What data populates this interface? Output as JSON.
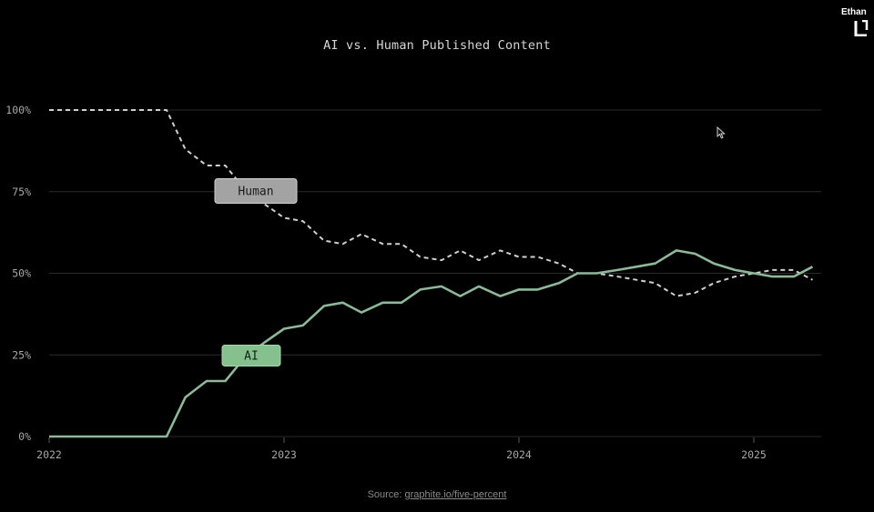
{
  "title": "AI vs. Human Published Content",
  "source": {
    "prefix": "Source: ",
    "link_text": "graphite.io/five-percent"
  },
  "watermark": {
    "name": "Ethan",
    "logo_icon": "logo-mark-icon"
  },
  "cursor_icon": "mouse-pointer-icon",
  "colors": {
    "background": "#000000",
    "human_line": "#cfcfcf",
    "ai_line": "#8fb89a",
    "human_label_bg": "#a3a3a3",
    "ai_label_bg": "#87c08f",
    "grid": "#2a2a2a",
    "tick_text": "#a8a8a8"
  },
  "chart_data": {
    "type": "line",
    "title": "AI vs. Human Published Content",
    "xlabel": "",
    "ylabel": "",
    "x_ticks": [
      "2022",
      "2023",
      "2024",
      "2025"
    ],
    "y_ticks": [
      "0%",
      "25%",
      "50%",
      "75%",
      "100%"
    ],
    "ylim": [
      0,
      100
    ],
    "xlim": [
      2022.0,
      2025.33
    ],
    "grid": "horizontal",
    "legend": "inline-labels",
    "series": [
      {
        "name": "Human",
        "style": "dashed",
        "label_position": "on-line",
        "points": [
          [
            2022.0,
            100
          ],
          [
            2022.08,
            100
          ],
          [
            2022.17,
            100
          ],
          [
            2022.25,
            100
          ],
          [
            2022.33,
            100
          ],
          [
            2022.42,
            100
          ],
          [
            2022.5,
            100
          ],
          [
            2022.58,
            88
          ],
          [
            2022.67,
            83
          ],
          [
            2022.75,
            83
          ],
          [
            2022.83,
            76
          ],
          [
            2022.92,
            71
          ],
          [
            2023.0,
            67
          ],
          [
            2023.08,
            66
          ],
          [
            2023.17,
            60
          ],
          [
            2023.25,
            59
          ],
          [
            2023.33,
            62
          ],
          [
            2023.42,
            59
          ],
          [
            2023.5,
            59
          ],
          [
            2023.58,
            55
          ],
          [
            2023.67,
            54
          ],
          [
            2023.75,
            57
          ],
          [
            2023.83,
            54
          ],
          [
            2023.92,
            57
          ],
          [
            2024.0,
            55
          ],
          [
            2024.08,
            55
          ],
          [
            2024.17,
            53
          ],
          [
            2024.25,
            50
          ],
          [
            2024.33,
            50
          ],
          [
            2024.42,
            49
          ],
          [
            2024.5,
            48
          ],
          [
            2024.58,
            47
          ],
          [
            2024.67,
            43
          ],
          [
            2024.75,
            44
          ],
          [
            2024.83,
            47
          ],
          [
            2024.92,
            49
          ],
          [
            2025.0,
            50
          ],
          [
            2025.08,
            51
          ],
          [
            2025.17,
            51
          ],
          [
            2025.25,
            48
          ]
        ]
      },
      {
        "name": "AI",
        "style": "solid",
        "label_position": "on-line",
        "points": [
          [
            2022.0,
            0
          ],
          [
            2022.08,
            0
          ],
          [
            2022.17,
            0
          ],
          [
            2022.25,
            0
          ],
          [
            2022.33,
            0
          ],
          [
            2022.42,
            0
          ],
          [
            2022.5,
            0
          ],
          [
            2022.58,
            12
          ],
          [
            2022.67,
            17
          ],
          [
            2022.75,
            17
          ],
          [
            2022.83,
            24
          ],
          [
            2022.92,
            29
          ],
          [
            2023.0,
            33
          ],
          [
            2023.08,
            34
          ],
          [
            2023.17,
            40
          ],
          [
            2023.25,
            41
          ],
          [
            2023.33,
            38
          ],
          [
            2023.42,
            41
          ],
          [
            2023.5,
            41
          ],
          [
            2023.58,
            45
          ],
          [
            2023.67,
            46
          ],
          [
            2023.75,
            43
          ],
          [
            2023.83,
            46
          ],
          [
            2023.92,
            43
          ],
          [
            2024.0,
            45
          ],
          [
            2024.08,
            45
          ],
          [
            2024.17,
            47
          ],
          [
            2024.25,
            50
          ],
          [
            2024.33,
            50
          ],
          [
            2024.42,
            51
          ],
          [
            2024.5,
            52
          ],
          [
            2024.58,
            53
          ],
          [
            2024.67,
            57
          ],
          [
            2024.75,
            56
          ],
          [
            2024.83,
            53
          ],
          [
            2024.92,
            51
          ],
          [
            2025.0,
            50
          ],
          [
            2025.08,
            49
          ],
          [
            2025.17,
            49
          ],
          [
            2025.25,
            52
          ]
        ]
      }
    ]
  }
}
